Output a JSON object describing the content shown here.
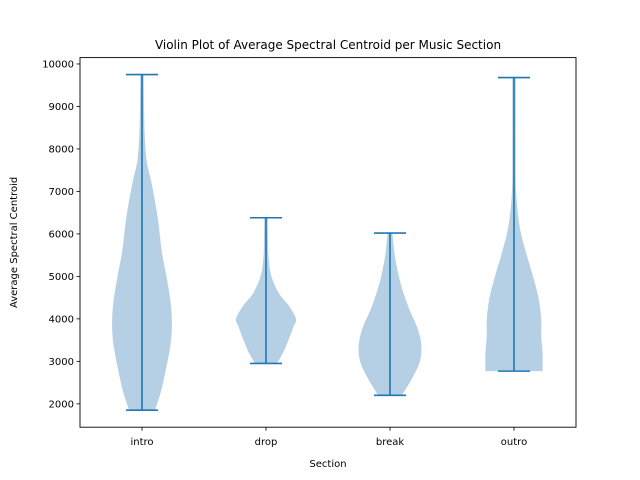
{
  "chart_data": {
    "type": "violin",
    "title": "Violin Plot of Average Spectral Centroid per Music Section",
    "xlabel": "Section",
    "ylabel": "Average Spectral Centroid",
    "categories": [
      "intro",
      "drop",
      "break",
      "outro"
    ],
    "ylim": [
      1450,
      10150
    ],
    "yticks": [
      2000,
      3000,
      4000,
      5000,
      6000,
      7000,
      8000,
      9000,
      10000
    ],
    "ytick_labels": [
      "2000",
      "3000",
      "4000",
      "5000",
      "6000",
      "7000",
      "8000",
      "9000",
      "10000"
    ],
    "grid": false,
    "legend": "none",
    "body_color": "#b5cfe4",
    "line_color": "#1f77b4",
    "series": [
      {
        "category": "intro",
        "min": 1850,
        "max": 9750,
        "density": [
          [
            1850,
            0.38
          ],
          [
            2300,
            0.56
          ],
          [
            2800,
            0.7
          ],
          [
            3400,
            0.84
          ],
          [
            3900,
            0.88
          ],
          [
            4400,
            0.84
          ],
          [
            5000,
            0.72
          ],
          [
            5600,
            0.58
          ],
          [
            6400,
            0.46
          ],
          [
            7200,
            0.28
          ],
          [
            7700,
            0.14
          ],
          [
            8300,
            0.08
          ],
          [
            9000,
            0.06
          ],
          [
            9750,
            0.05
          ]
        ]
      },
      {
        "category": "drop",
        "min": 2950,
        "max": 6380,
        "density": [
          [
            2950,
            0.32
          ],
          [
            3200,
            0.5
          ],
          [
            3500,
            0.66
          ],
          [
            3800,
            0.8
          ],
          [
            4000,
            0.88
          ],
          [
            4300,
            0.68
          ],
          [
            4600,
            0.38
          ],
          [
            5000,
            0.16
          ],
          [
            5400,
            0.08
          ],
          [
            5800,
            0.06
          ],
          [
            6380,
            0.05
          ]
        ]
      },
      {
        "category": "break",
        "min": 2200,
        "max": 6020,
        "density": [
          [
            2200,
            0.35
          ],
          [
            2600,
            0.65
          ],
          [
            3000,
            0.88
          ],
          [
            3400,
            0.92
          ],
          [
            3800,
            0.8
          ],
          [
            4200,
            0.58
          ],
          [
            4600,
            0.4
          ],
          [
            5000,
            0.26
          ],
          [
            5500,
            0.14
          ],
          [
            6020,
            0.07
          ]
        ]
      },
      {
        "category": "outro",
        "min": 2770,
        "max": 9680,
        "density": [
          [
            2770,
            0.84
          ],
          [
            3200,
            0.84
          ],
          [
            3600,
            0.8
          ],
          [
            4000,
            0.8
          ],
          [
            4500,
            0.72
          ],
          [
            5000,
            0.56
          ],
          [
            5600,
            0.34
          ],
          [
            6200,
            0.16
          ],
          [
            7000,
            0.06
          ],
          [
            8000,
            0.05
          ],
          [
            9000,
            0.05
          ],
          [
            9680,
            0.05
          ]
        ]
      }
    ]
  }
}
